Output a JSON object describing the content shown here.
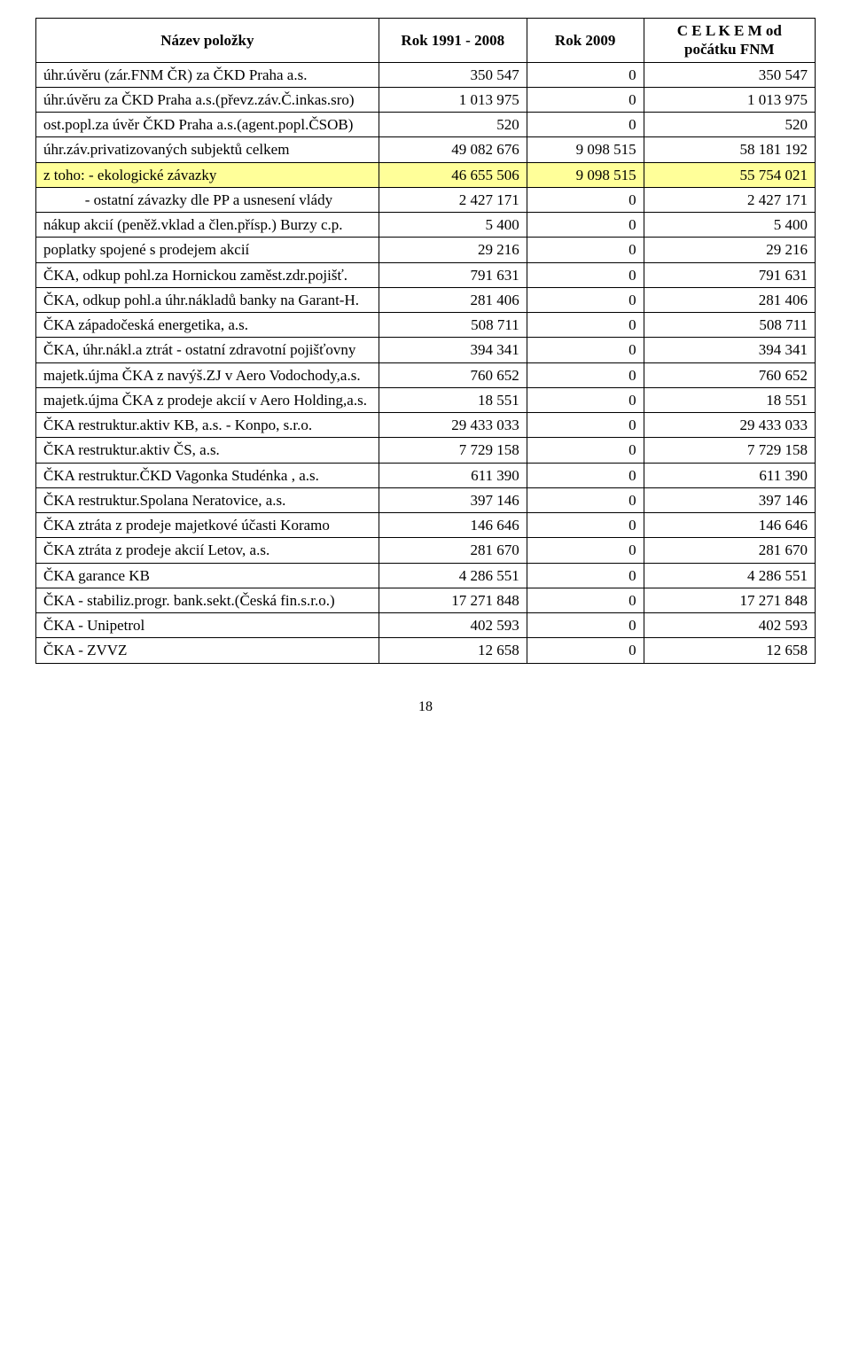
{
  "headers": {
    "c0": "Název položky",
    "c1": "Rok 1991 - 2008",
    "c2": "Rok 2009",
    "c3": "C E L K E M od počátku FNM"
  },
  "rows": [
    {
      "label": "úhr.úvěru (zár.FNM ČR) za ČKD Praha a.s.",
      "v1": "350 547",
      "v2": "0",
      "v3": "350 547",
      "hl": false
    },
    {
      "label": "úhr.úvěru za ČKD Praha a.s.(převz.záv.Č.inkas.sro)",
      "v1": "1 013 975",
      "v2": "0",
      "v3": "1 013 975",
      "hl": false
    },
    {
      "label": "ost.popl.za úvěr ČKD Praha a.s.(agent.popl.ČSOB)",
      "v1": "520",
      "v2": "0",
      "v3": "520",
      "hl": false
    },
    {
      "label": "úhr.záv.privatizovaných subjektů celkem",
      "v1": "49 082 676",
      "v2": "9 098 515",
      "v3": "58 181 192",
      "hl": false
    },
    {
      "label": "z toho: - ekologické závazky",
      "v1": "46 655 506",
      "v2": "9 098 515",
      "v3": "55 754 021",
      "hl": true
    },
    {
      "label": "           - ostatní závazky dle PP a usnesení vlády",
      "v1": "2 427 171",
      "v2": "0",
      "v3": "2 427 171",
      "hl": false
    },
    {
      "label": "nákup akcií (peněž.vklad a člen.přísp.) Burzy c.p.",
      "v1": "5 400",
      "v2": "0",
      "v3": "5 400",
      "hl": false
    },
    {
      "label": "poplatky spojené s prodejem akcií",
      "v1": "29 216",
      "v2": "0",
      "v3": "29 216",
      "hl": false
    },
    {
      "label": "ČKA, odkup pohl.za Hornickou zaměst.zdr.pojišť.",
      "v1": "791 631",
      "v2": "0",
      "v3": "791 631",
      "hl": false
    },
    {
      "label": "ČKA, odkup pohl.a úhr.nákladů banky na Garant-H.",
      "v1": "281 406",
      "v2": "0",
      "v3": "281 406",
      "hl": false
    },
    {
      "label": "ČKA západočeská energetika, a.s.",
      "v1": "508 711",
      "v2": "0",
      "v3": "508 711",
      "hl": false
    },
    {
      "label": "ČKA, úhr.nákl.a ztrát - ostatní zdravotní pojišťovny",
      "v1": "394 341",
      "v2": "0",
      "v3": "394 341",
      "hl": false
    },
    {
      "label": "majetk.újma ČKA z navýš.ZJ v Aero Vodochody,a.s.",
      "v1": "760 652",
      "v2": "0",
      "v3": "760 652",
      "hl": false
    },
    {
      "label": "majetk.újma ČKA z prodeje akcií v Aero Holding,a.s.",
      "v1": "18 551",
      "v2": "0",
      "v3": "18 551",
      "hl": false
    },
    {
      "label": "ČKA restruktur.aktiv KB, a.s. - Konpo, s.r.o.",
      "v1": "29 433 033",
      "v2": "0",
      "v3": "29 433 033",
      "hl": false
    },
    {
      "label": "ČKA restruktur.aktiv ČS, a.s.",
      "v1": "7 729 158",
      "v2": "0",
      "v3": "7 729 158",
      "hl": false
    },
    {
      "label": "ČKA restruktur.ČKD Vagonka Studénka , a.s.",
      "v1": "611 390",
      "v2": "0",
      "v3": "611 390",
      "hl": false
    },
    {
      "label": "ČKA restruktur.Spolana Neratovice, a.s.",
      "v1": "397 146",
      "v2": "0",
      "v3": "397 146",
      "hl": false
    },
    {
      "label": "ČKA ztráta z prodeje majetkové účasti Koramo",
      "v1": "146 646",
      "v2": "0",
      "v3": "146 646",
      "hl": false
    },
    {
      "label": "ČKA ztráta z prodeje akcií Letov, a.s.",
      "v1": "281 670",
      "v2": "0",
      "v3": "281 670",
      "hl": false
    },
    {
      "label": "ČKA garance KB",
      "v1": "4 286 551",
      "v2": "0",
      "v3": "4 286 551",
      "hl": false
    },
    {
      "label": "ČKA - stabiliz.progr. bank.sekt.(Česká fin.s.r.o.)",
      "v1": "17 271 848",
      "v2": "0",
      "v3": "17 271 848",
      "hl": false
    },
    {
      "label": "ČKA - Unipetrol",
      "v1": "402 593",
      "v2": "0",
      "v3": "402 593",
      "hl": false
    },
    {
      "label": "ČKA - ZVVZ",
      "v1": "12 658",
      "v2": "0",
      "v3": "12 658",
      "hl": false
    }
  ],
  "page_number": "18"
}
